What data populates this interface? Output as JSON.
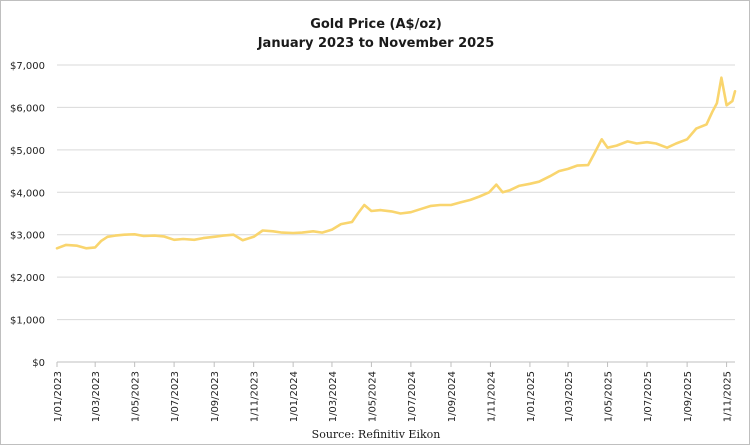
{
  "chart_data": {
    "type": "line",
    "title": "Gold Price (A$/oz)",
    "subtitle": "January 2023 to November 2025",
    "xlabel": "",
    "ylabel": "",
    "source": "Source: Refinitiv Eikon",
    "ylim": [
      0,
      7000
    ],
    "y_ticks": [
      "$0",
      "$1,000",
      "$2,000",
      "$3,000",
      "$4,000",
      "$5,000",
      "$6,000",
      "$7,000"
    ],
    "x_ticks": [
      "1/01/2023",
      "1/03/2023",
      "1/05/2023",
      "1/07/2023",
      "1/09/2023",
      "1/11/2023",
      "1/01/2024",
      "1/03/2024",
      "1/05/2024",
      "1/07/2024",
      "1/09/2024",
      "1/11/2024",
      "1/01/2025",
      "1/03/2025",
      "1/05/2025",
      "1/07/2025",
      "1/09/2025",
      "1/11/2025"
    ],
    "grid": "horizontal",
    "line_color": "#F9D56E",
    "series": [
      {
        "name": "",
        "x": [
          "2023-01-01",
          "2023-01-15",
          "2023-02-01",
          "2023-02-15",
          "2023-03-01",
          "2023-03-10",
          "2023-03-20",
          "2023-04-01",
          "2023-04-15",
          "2023-05-01",
          "2023-05-15",
          "2023-06-01",
          "2023-06-15",
          "2023-07-01",
          "2023-07-15",
          "2023-08-01",
          "2023-08-15",
          "2023-09-01",
          "2023-09-15",
          "2023-10-01",
          "2023-10-15",
          "2023-11-01",
          "2023-11-15",
          "2023-12-01",
          "2023-12-15",
          "2024-01-01",
          "2024-01-15",
          "2024-02-01",
          "2024-02-15",
          "2024-03-01",
          "2024-03-15",
          "2024-04-01",
          "2024-04-10",
          "2024-04-20",
          "2024-05-01",
          "2024-05-15",
          "2024-06-01",
          "2024-06-15",
          "2024-07-01",
          "2024-07-15",
          "2024-08-01",
          "2024-08-15",
          "2024-09-01",
          "2024-09-15",
          "2024-10-01",
          "2024-10-15",
          "2024-10-30",
          "2024-11-10",
          "2024-11-20",
          "2024-12-01",
          "2024-12-15",
          "2025-01-01",
          "2025-01-15",
          "2025-02-01",
          "2025-02-15",
          "2025-03-01",
          "2025-03-15",
          "2025-04-01",
          "2025-04-10",
          "2025-04-22",
          "2025-05-01",
          "2025-05-15",
          "2025-06-01",
          "2025-06-15",
          "2025-07-01",
          "2025-07-15",
          "2025-08-01",
          "2025-08-15",
          "2025-09-01",
          "2025-09-15",
          "2025-10-01",
          "2025-10-10",
          "2025-10-17",
          "2025-10-24",
          "2025-11-01",
          "2025-11-10",
          "2025-11-14"
        ],
        "values": [
          2680,
          2760,
          2740,
          2680,
          2700,
          2850,
          2950,
          2980,
          3000,
          3010,
          2970,
          2980,
          2960,
          2880,
          2900,
          2880,
          2920,
          2950,
          2980,
          3000,
          2870,
          2950,
          3100,
          3080,
          3050,
          3040,
          3050,
          3080,
          3050,
          3120,
          3250,
          3300,
          3500,
          3700,
          3560,
          3580,
          3550,
          3500,
          3530,
          3600,
          3680,
          3700,
          3700,
          3760,
          3820,
          3900,
          4000,
          4180,
          4000,
          4050,
          4150,
          4200,
          4250,
          4380,
          4500,
          4550,
          4630,
          4640,
          4900,
          5250,
          5050,
          5100,
          5200,
          5150,
          5180,
          5150,
          5050,
          5150,
          5250,
          5500,
          5600,
          5900,
          6100,
          6700,
          6050,
          6150,
          6380
        ]
      }
    ]
  }
}
